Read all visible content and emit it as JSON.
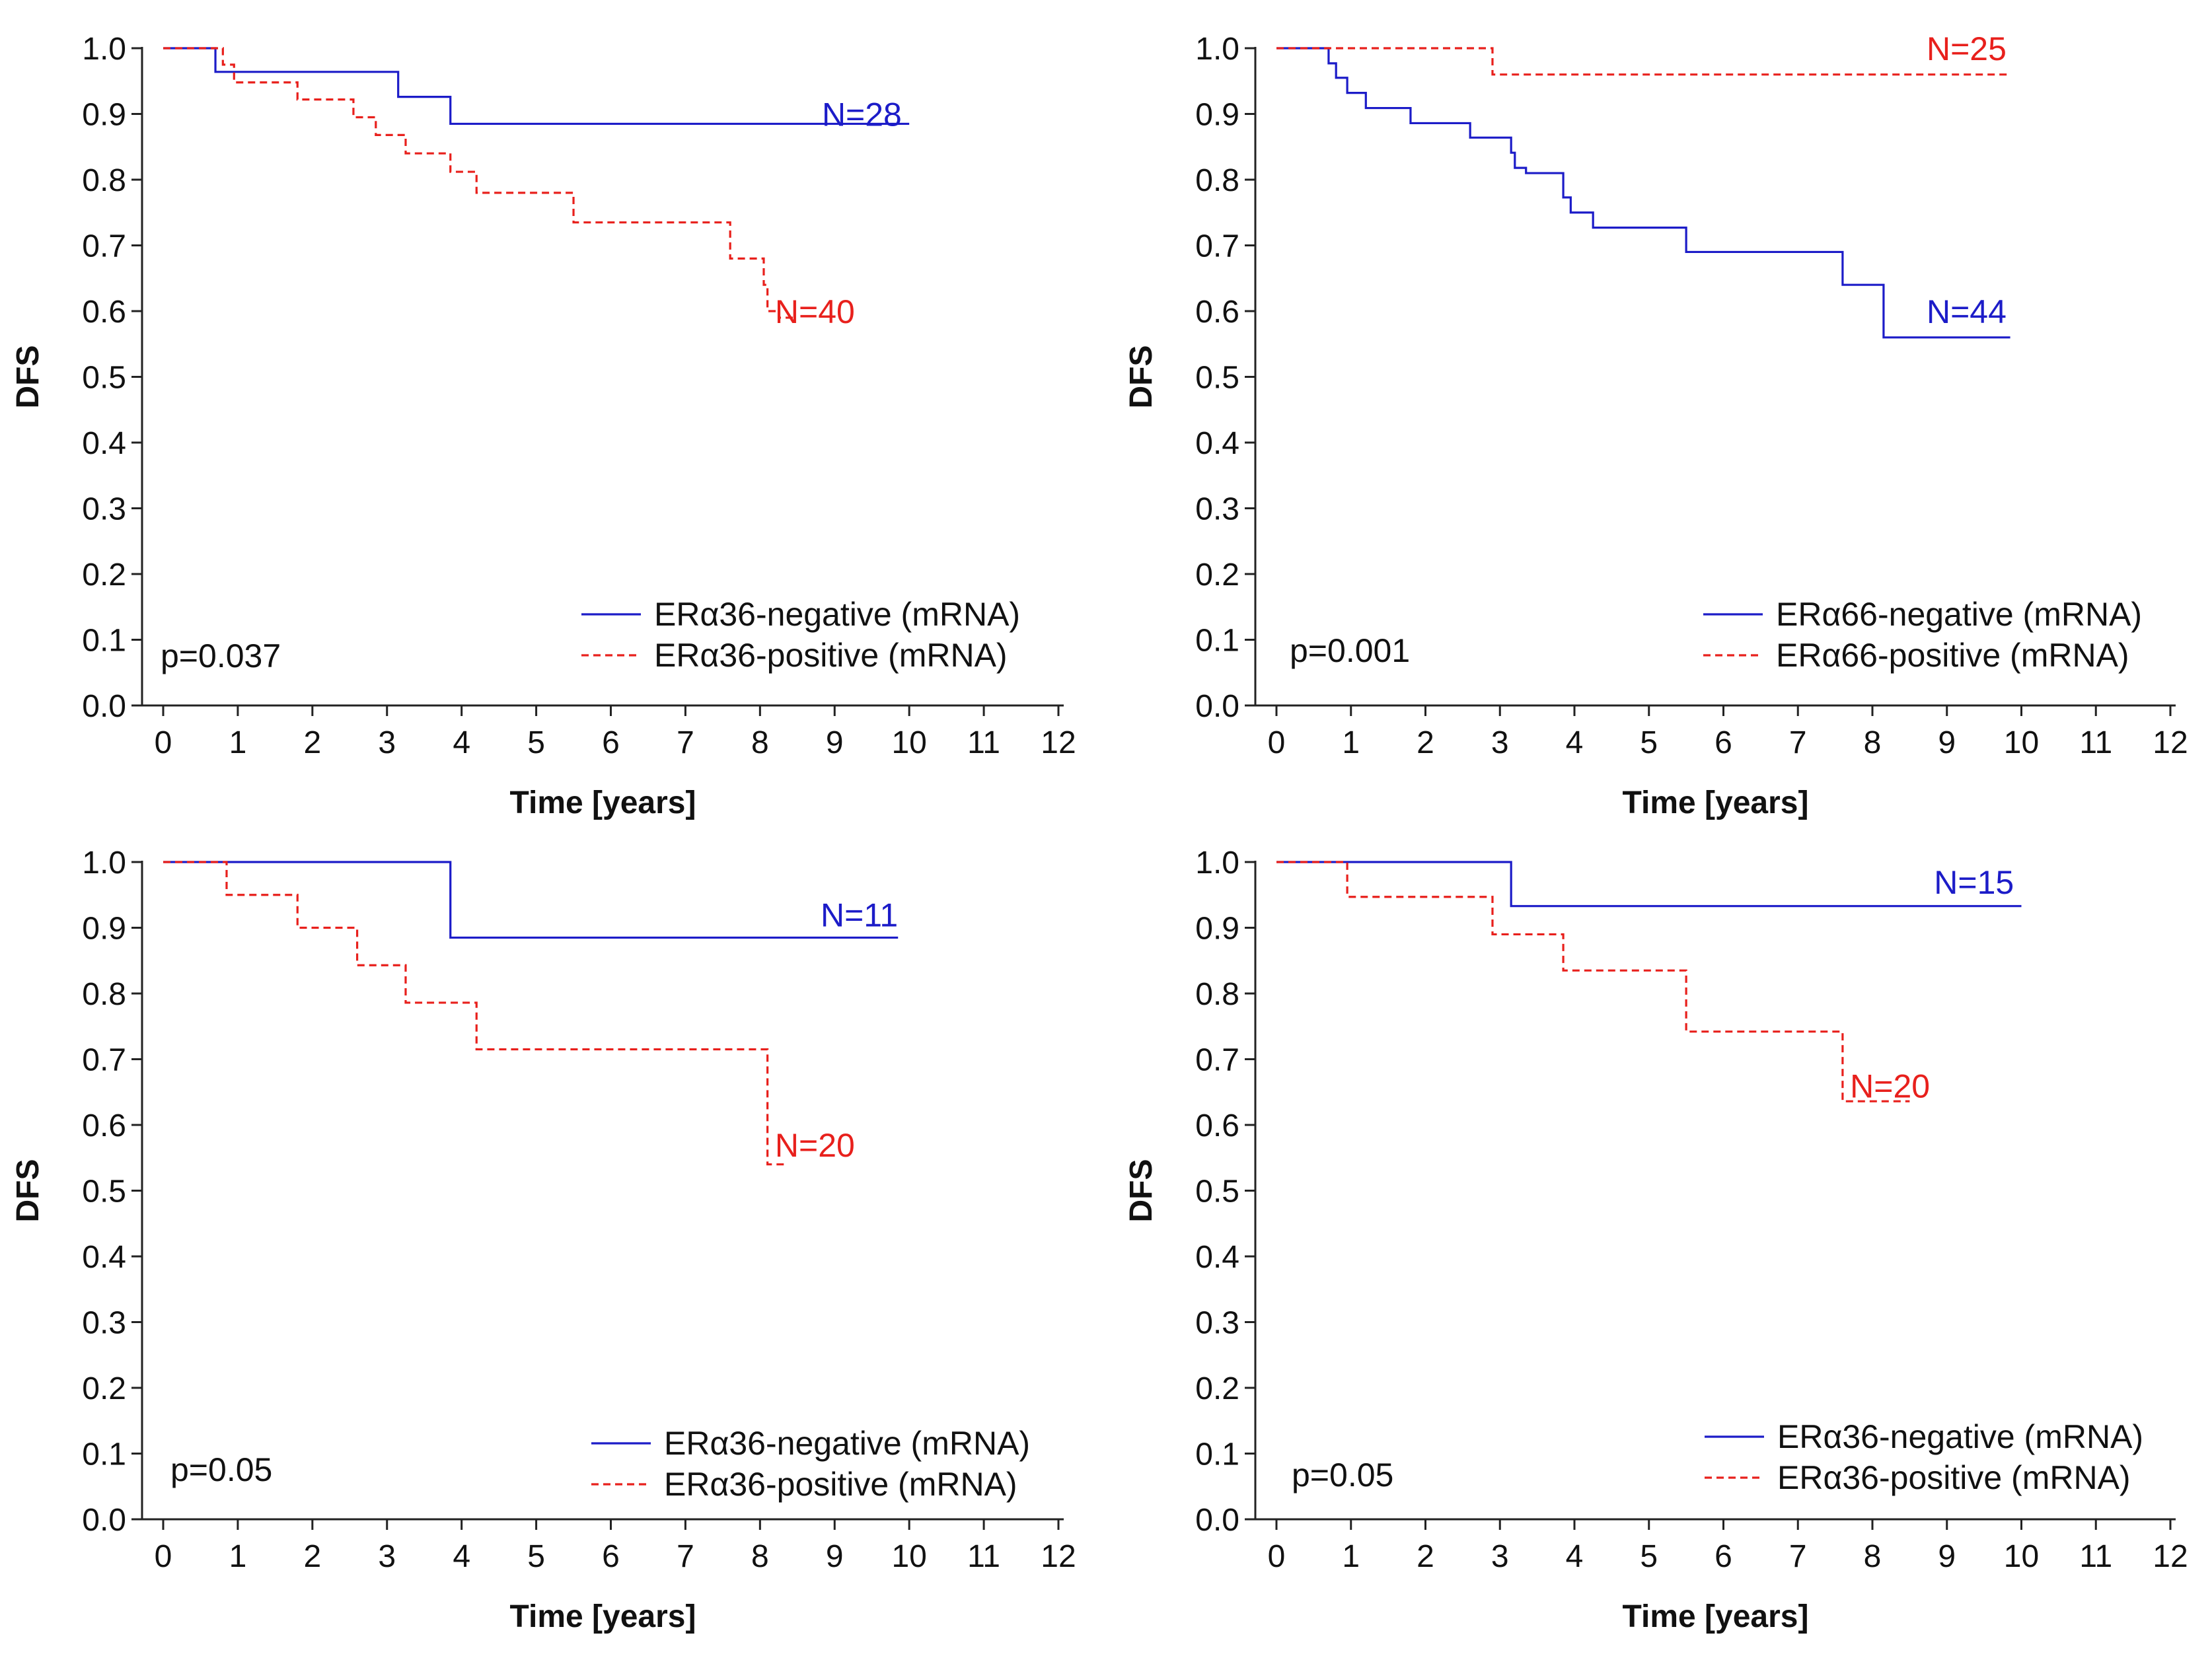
{
  "chart_data": [
    {
      "type": "line",
      "panel": "top-left",
      "xlabel": "Time [years]",
      "ylabel": "DFS",
      "xlim": [
        0,
        12
      ],
      "ylim": [
        0.0,
        1.0
      ],
      "x_ticks": [
        "0",
        "1",
        "2",
        "3",
        "4",
        "5",
        "6",
        "7",
        "8",
        "9",
        "10",
        "11",
        "12"
      ],
      "y_ticks": [
        "0.0",
        "0.1",
        "0.2",
        "0.3",
        "0.4",
        "0.5",
        "0.6",
        "0.7",
        "0.8",
        "0.9",
        "1.0"
      ],
      "p_value": "p=0.037",
      "legend": [
        "ERα36-negative (mRNA)",
        "ERα36-positive (mRNA)"
      ],
      "series": [
        {
          "name": "ERα36-negative (mRNA)",
          "color": "#1c1cc8",
          "dash": "solid",
          "n_label": "N=28",
          "n_at": [
            9.9,
            0.9
          ],
          "end_x": 10.0,
          "steps": [
            [
              0,
              1.0
            ],
            [
              0.7,
              0.964
            ],
            [
              3.15,
              0.926
            ],
            [
              3.85,
              0.885
            ]
          ]
        },
        {
          "name": "ERα36-positive (mRNA)",
          "color": "#e8201c",
          "dash": "dashed",
          "n_label": "N=40",
          "n_at": [
            8.2,
            0.6
          ],
          "end_x": 8.5,
          "steps": [
            [
              0,
              1.0
            ],
            [
              0.8,
              0.975
            ],
            [
              0.95,
              0.948
            ],
            [
              1.8,
              0.922
            ],
            [
              2.55,
              0.895
            ],
            [
              2.85,
              0.868
            ],
            [
              3.25,
              0.84
            ],
            [
              3.85,
              0.812
            ],
            [
              4.2,
              0.78
            ],
            [
              5.5,
              0.735
            ],
            [
              7.6,
              0.68
            ],
            [
              8.05,
              0.64
            ],
            [
              8.1,
              0.6
            ],
            [
              8.25,
              0.59
            ]
          ]
        }
      ]
    },
    {
      "type": "line",
      "panel": "top-right",
      "xlabel": "Time [years]",
      "ylabel": "DFS",
      "xlim": [
        0,
        12
      ],
      "ylim": [
        0.0,
        1.0
      ],
      "x_ticks": [
        "0",
        "1",
        "2",
        "3",
        "4",
        "5",
        "6",
        "7",
        "8",
        "9",
        "10",
        "11",
        "12"
      ],
      "y_ticks": [
        "0.0",
        "0.1",
        "0.2",
        "0.3",
        "0.4",
        "0.5",
        "0.6",
        "0.7",
        "0.8",
        "0.9",
        "1.0"
      ],
      "p_value": "p=0.001",
      "legend": [
        "ERα66-negative (mRNA)",
        "ERα66-positive (mRNA)"
      ],
      "series": [
        {
          "name": "ERα66-negative (mRNA)",
          "color": "#1c1cc8",
          "dash": "solid",
          "n_label": "N=44",
          "n_at": [
            9.8,
            0.6
          ],
          "end_x": 9.85,
          "steps": [
            [
              0,
              1.0
            ],
            [
              0.7,
              0.977
            ],
            [
              0.8,
              0.955
            ],
            [
              0.95,
              0.932
            ],
            [
              1.2,
              0.909
            ],
            [
              1.8,
              0.886
            ],
            [
              2.6,
              0.864
            ],
            [
              3.15,
              0.841
            ],
            [
              3.2,
              0.818
            ],
            [
              3.35,
              0.81
            ],
            [
              3.85,
              0.773
            ],
            [
              3.95,
              0.75
            ],
            [
              4.25,
              0.727
            ],
            [
              5.5,
              0.69
            ],
            [
              7.6,
              0.64
            ],
            [
              8.15,
              0.56
            ]
          ]
        },
        {
          "name": "ERα66-positive (mRNA)",
          "color": "#e8201c",
          "dash": "dashed",
          "n_label": "N=25",
          "n_at": [
            9.8,
            1.0
          ],
          "end_x": 9.85,
          "steps": [
            [
              0,
              1.0
            ],
            [
              2.9,
              0.96
            ]
          ]
        }
      ]
    },
    {
      "type": "line",
      "panel": "bottom-left",
      "xlabel": "Time [years]",
      "ylabel": "DFS",
      "xlim": [
        0,
        12
      ],
      "ylim": [
        0.0,
        1.0
      ],
      "x_ticks": [
        "0",
        "1",
        "2",
        "3",
        "4",
        "5",
        "6",
        "7",
        "8",
        "9",
        "10",
        "11",
        "12"
      ],
      "y_ticks": [
        "0.0",
        "0.1",
        "0.2",
        "0.3",
        "0.4",
        "0.5",
        "0.6",
        "0.7",
        "0.8",
        "0.9",
        "1.0"
      ],
      "p_value": "p=0.05",
      "legend": [
        "ERα36-negative (mRNA)",
        "ERα36-positive (mRNA)"
      ],
      "series": [
        {
          "name": "ERα36-negative (mRNA)",
          "color": "#1c1cc8",
          "dash": "solid",
          "n_label": "N=11",
          "n_at": [
            9.85,
            0.92
          ],
          "end_x": 9.85,
          "steps": [
            [
              0,
              1.0
            ],
            [
              3.85,
              0.885
            ]
          ]
        },
        {
          "name": "ERα36-positive (mRNA)",
          "color": "#e8201c",
          "dash": "dashed",
          "n_label": "N=20",
          "n_at": [
            8.2,
            0.57
          ],
          "end_x": 8.35,
          "steps": [
            [
              0,
              1.0
            ],
            [
              0.85,
              0.95
            ],
            [
              1.8,
              0.9
            ],
            [
              2.6,
              0.843
            ],
            [
              3.25,
              0.786
            ],
            [
              4.2,
              0.715
            ],
            [
              8.1,
              0.54
            ]
          ]
        }
      ]
    },
    {
      "type": "line",
      "panel": "bottom-right",
      "xlabel": "Time [years]",
      "ylabel": "DFS",
      "xlim": [
        0,
        12
      ],
      "ylim": [
        0.0,
        1.0
      ],
      "x_ticks": [
        "0",
        "1",
        "2",
        "3",
        "4",
        "5",
        "6",
        "7",
        "8",
        "9",
        "10",
        "11",
        "12"
      ],
      "y_ticks": [
        "0.0",
        "0.1",
        "0.2",
        "0.3",
        "0.4",
        "0.5",
        "0.6",
        "0.7",
        "0.8",
        "0.9",
        "1.0"
      ],
      "p_value": "p=0.05",
      "legend": [
        "ERα36-negative (mRNA)",
        "ERα36-positive (mRNA)"
      ],
      "series": [
        {
          "name": "ERα36-negative (mRNA)",
          "color": "#1c1cc8",
          "dash": "solid",
          "n_label": "N=15",
          "n_at": [
            9.9,
            0.97
          ],
          "end_x": 10.0,
          "steps": [
            [
              0,
              1.0
            ],
            [
              3.15,
              0.933
            ]
          ]
        },
        {
          "name": "ERα36-positive (mRNA)",
          "color": "#e8201c",
          "dash": "dashed",
          "n_label": "N=20",
          "n_at": [
            7.7,
            0.66
          ],
          "end_x": 8.5,
          "steps": [
            [
              0,
              1.0
            ],
            [
              0.95,
              0.947
            ],
            [
              2.9,
              0.89
            ],
            [
              3.85,
              0.835
            ],
            [
              5.5,
              0.742
            ],
            [
              7.6,
              0.636
            ]
          ]
        }
      ]
    }
  ]
}
